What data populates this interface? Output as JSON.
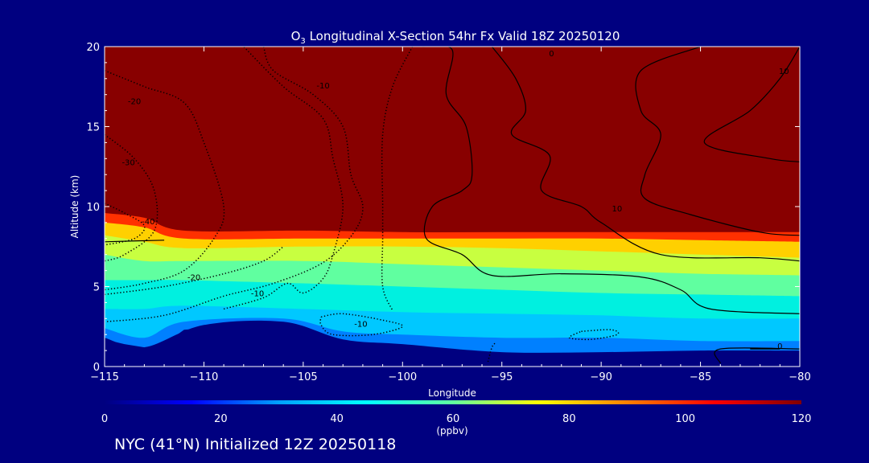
{
  "chart_data": {
    "type": "heatmap",
    "title_prefix": "O",
    "title_subscript": "3",
    "title_suffix": " Longitudinal X-Section 54hr  Fx Valid 18Z 20250120",
    "xlabel": "Longitude",
    "ylabel": "Altitude (km)",
    "xlim": [
      -115,
      -80
    ],
    "ylim": [
      0,
      20
    ],
    "x_ticks": [
      -115,
      -110,
      -105,
      -100,
      -95,
      -90,
      -85,
      -80
    ],
    "x_tick_labels": [
      "−115",
      "−110",
      "−105",
      "−100",
      "−95",
      "−90",
      "−85",
      "−80"
    ],
    "y_ticks": [
      0,
      5,
      10,
      15,
      20
    ],
    "y_tick_labels": [
      "0",
      "5",
      "10",
      "15",
      "20"
    ],
    "colorbar": {
      "label": "(ppbv)",
      "ticks": [
        0,
        20,
        40,
        60,
        80,
        100,
        120
      ],
      "tick_labels": [
        "0",
        "20",
        "40",
        "60",
        "80",
        "100",
        "120"
      ],
      "colors": [
        "#000080",
        "#0000ff",
        "#00a0ff",
        "#00ffff",
        "#60ffa0",
        "#ffff00",
        "#ff8000",
        "#ff0000",
        "#800000"
      ]
    },
    "fill_bands": [
      {
        "value": 120,
        "color": "#880000",
        "bottom": [
          [
            -115,
            9.6
          ],
          [
            -113,
            9.3
          ],
          [
            -111,
            8.5
          ],
          [
            -105,
            8.5
          ],
          [
            -100,
            8.4
          ],
          [
            -95,
            8.4
          ],
          [
            -90,
            8.4
          ],
          [
            -85,
            8.4
          ],
          [
            -80,
            8.4
          ]
        ]
      },
      {
        "value": 100,
        "color": "#ff3000",
        "bottom": [
          [
            -115,
            9.0
          ],
          [
            -113,
            8.7
          ],
          [
            -111,
            8.0
          ],
          [
            -105,
            8.0
          ],
          [
            -100,
            8.0
          ],
          [
            -95,
            8.0
          ],
          [
            -90,
            8.0
          ],
          [
            -85,
            7.9
          ],
          [
            -80,
            7.8
          ]
        ]
      },
      {
        "value": 85,
        "color": "#ffd000",
        "bottom": [
          [
            -115,
            8.2
          ],
          [
            -113,
            7.8
          ],
          [
            -111,
            7.4
          ],
          [
            -105,
            7.5
          ],
          [
            -100,
            7.5
          ],
          [
            -95,
            7.4
          ],
          [
            -90,
            7.2
          ],
          [
            -85,
            7.0
          ],
          [
            -80,
            6.8
          ]
        ]
      },
      {
        "value": 70,
        "color": "#c8ff40",
        "bottom": [
          [
            -115,
            7.0
          ],
          [
            -113,
            6.6
          ],
          [
            -111,
            6.6
          ],
          [
            -105,
            6.6
          ],
          [
            -100,
            6.4
          ],
          [
            -95,
            6.2
          ],
          [
            -90,
            6.0
          ],
          [
            -85,
            5.8
          ],
          [
            -80,
            5.7
          ]
        ]
      },
      {
        "value": 60,
        "color": "#60ffa0",
        "bottom": [
          [
            -115,
            5.4
          ],
          [
            -113,
            5.4
          ],
          [
            -111,
            5.4
          ],
          [
            -105,
            5.2
          ],
          [
            -100,
            5.0
          ],
          [
            -95,
            4.8
          ],
          [
            -90,
            4.6
          ],
          [
            -85,
            4.5
          ],
          [
            -80,
            4.4
          ]
        ]
      },
      {
        "value": 52,
        "color": "#00f0e0",
        "bottom": [
          [
            -115,
            3.6
          ],
          [
            -113,
            3.6
          ],
          [
            -111,
            3.8
          ],
          [
            -105,
            3.6
          ],
          [
            -100,
            3.4
          ],
          [
            -95,
            3.3
          ],
          [
            -90,
            3.2
          ],
          [
            -85,
            3.0
          ],
          [
            -80,
            3.0
          ]
        ]
      },
      {
        "value": 45,
        "color": "#00c8ff",
        "bottom": [
          [
            -115,
            2.4
          ],
          [
            -113,
            1.8
          ],
          [
            -111,
            2.8
          ],
          [
            -106,
            3.0
          ],
          [
            -103,
            2.2
          ],
          [
            -100,
            2.0
          ],
          [
            -95,
            1.8
          ],
          [
            -90,
            1.8
          ],
          [
            -85,
            1.6
          ],
          [
            -80,
            1.6
          ]
        ]
      },
      {
        "value": 35,
        "color": "#0080ff",
        "bottom": [
          [
            -115,
            1.8
          ],
          [
            -113,
            1.2
          ],
          [
            -110,
            2.6
          ],
          [
            -106,
            2.8
          ],
          [
            -103,
            1.7
          ],
          [
            -100,
            1.4
          ],
          [
            -95,
            0.9
          ],
          [
            -90,
            0.9
          ],
          [
            -85,
            1.0
          ],
          [
            -80,
            1.0
          ]
        ]
      }
    ],
    "terrain_km": [
      [
        -115,
        1.7
      ],
      [
        -114,
        1.4
      ],
      [
        -113,
        1.2
      ],
      [
        -112,
        1.4
      ],
      [
        -111,
        2.3
      ],
      [
        -110,
        2.4
      ],
      [
        -109,
        2.2
      ],
      [
        -108,
        2.1
      ],
      [
        -107,
        2.4
      ],
      [
        -106,
        2.5
      ],
      [
        -105,
        1.9
      ],
      [
        -104,
        1.5
      ],
      [
        -102,
        1.2
      ],
      [
        -100,
        1.0
      ],
      [
        -98,
        0.7
      ],
      [
        -96,
        0.4
      ],
      [
        -94,
        0.25
      ],
      [
        -90,
        0.2
      ],
      [
        -86,
        0.2
      ],
      [
        -84,
        0.15
      ],
      [
        -80,
        0.1
      ]
    ],
    "contours": [
      {
        "label": "0",
        "style": "solid",
        "points": [
          [
            -99,
            20
          ],
          [
            -97.5,
            19.8
          ],
          [
            -97.8,
            17
          ],
          [
            -96.8,
            15
          ],
          [
            -96.5,
            12
          ],
          [
            -97,
            11
          ],
          [
            -98.5,
            10
          ],
          [
            -98.8,
            8
          ],
          [
            -97,
            7
          ],
          [
            -95.5,
            5.7
          ],
          [
            -92,
            5.8
          ],
          [
            -88,
            5.6
          ],
          [
            -86,
            4.8
          ],
          [
            -84.5,
            3.6
          ],
          [
            -80,
            3.3
          ]
        ],
        "label_at": [
          -92.5,
          19.6
        ]
      },
      {
        "label": "10",
        "style": "solid",
        "points": [
          [
            -85,
            20
          ],
          [
            -88,
            18.5
          ],
          [
            -88,
            16
          ],
          [
            -87,
            14.5
          ],
          [
            -87.8,
            12
          ],
          [
            -87.8,
            10.5
          ],
          [
            -85.5,
            9.5
          ],
          [
            -82,
            8.4
          ],
          [
            -80,
            8.2
          ]
        ],
        "label_at": [
          -89.2,
          9.9
        ]
      },
      {
        "label": "10",
        "style": "solid",
        "points": [
          [
            -80,
            20
          ],
          [
            -81,
            18
          ],
          [
            -82.5,
            16
          ],
          [
            -84.8,
            14
          ],
          [
            -81.5,
            13
          ],
          [
            -80,
            12.8
          ]
        ],
        "label_at": [
          -80.8,
          18.5
        ]
      },
      {
        "label": "",
        "style": "solid",
        "points": [
          [
            -95.5,
            20
          ],
          [
            -94.3,
            18
          ],
          [
            -93.8,
            16
          ],
          [
            -94.5,
            14.5
          ],
          [
            -92.6,
            13.2
          ],
          [
            -93,
            11
          ],
          [
            -91,
            10
          ],
          [
            -90,
            9
          ],
          [
            -87,
            7
          ],
          [
            -82,
            6.8
          ],
          [
            -80,
            6.6
          ]
        ],
        "label_at": null
      },
      {
        "label": "",
        "style": "solid",
        "points": [
          [
            -115,
            7.8
          ],
          [
            -112,
            7.9
          ]
        ],
        "label_at": null
      },
      {
        "label": "",
        "style": "solid",
        "points": [
          [
            -84,
            0.2
          ],
          [
            -84,
            1.1
          ],
          [
            -80,
            1.1
          ]
        ],
        "label_at": null
      },
      {
        "label": "0",
        "style": "solid",
        "points": [
          [
            -82.5,
            1.1
          ],
          [
            -81,
            1.1
          ]
        ],
        "label_at": [
          -81,
          1.3
        ]
      },
      {
        "label": "-20",
        "style": "dotted",
        "points": [
          [
            -115,
            18.5
          ],
          [
            -113,
            17.5
          ],
          [
            -111,
            16.5
          ],
          [
            -110,
            14
          ],
          [
            -109,
            10
          ],
          [
            -109.5,
            8
          ],
          [
            -111,
            6
          ],
          [
            -113,
            5.2
          ],
          [
            -115,
            4.8
          ]
        ],
        "label_at": [
          -113.5,
          16.6
        ]
      },
      {
        "label": "-30",
        "style": "dotted",
        "points": [
          [
            -115,
            14.5
          ],
          [
            -113.5,
            13
          ],
          [
            -112.5,
            11
          ],
          [
            -112.5,
            8.5
          ],
          [
            -114,
            7
          ],
          [
            -115,
            6.6
          ]
        ],
        "label_at": [
          -113.8,
          12.8
        ]
      },
      {
        "label": "-40",
        "style": "dotted",
        "points": [
          [
            -115,
            10.2
          ],
          [
            -114,
            9.6
          ],
          [
            -113,
            8.8
          ],
          [
            -113.5,
            8.0
          ],
          [
            -115,
            7.6
          ]
        ],
        "label_at": [
          -112.8,
          9.1
        ]
      },
      {
        "label": "-20",
        "style": "dotted",
        "points": [
          [
            -115,
            4.5
          ],
          [
            -112,
            5.0
          ],
          [
            -109,
            5.8
          ],
          [
            -107,
            6.6
          ],
          [
            -106,
            7.5
          ]
        ],
        "label_at": [
          -110.5,
          5.6
        ]
      },
      {
        "label": "-10",
        "style": "dotted",
        "points": [
          [
            -107,
            20
          ],
          [
            -106.5,
            18.5
          ],
          [
            -104.5,
            17
          ],
          [
            -103,
            15
          ],
          [
            -102.6,
            12
          ],
          [
            -102,
            10
          ],
          [
            -102.5,
            8.3
          ],
          [
            -104,
            6.5
          ],
          [
            -106.5,
            5.2
          ],
          [
            -109,
            4.4
          ],
          [
            -112,
            3.2
          ],
          [
            -115,
            2.8
          ]
        ],
        "label_at": [
          -104,
          17.6
        ]
      },
      {
        "label": "-10",
        "style": "dotted",
        "points": [
          [
            -109,
            3.6
          ],
          [
            -107,
            4.3
          ],
          [
            -105.8,
            5.2
          ],
          [
            -105,
            4.6
          ],
          [
            -104,
            5.5
          ],
          [
            -103.5,
            7
          ],
          [
            -103,
            10
          ],
          [
            -103.5,
            13
          ],
          [
            -104,
            15.5
          ],
          [
            -106,
            17.5
          ],
          [
            -108,
            20
          ]
        ],
        "label_at": [
          -107.3,
          4.6
        ]
      },
      {
        "label": "-10",
        "style": "dotted",
        "points": [
          [
            -99.5,
            20
          ],
          [
            -100.5,
            17.5
          ],
          [
            -101,
            14.5
          ],
          [
            -101,
            10
          ],
          [
            -101,
            8
          ],
          [
            -101,
            5
          ],
          [
            -100.5,
            3.5
          ]
        ],
        "label_at": null
      },
      {
        "label": "-10",
        "style": "dotted",
        "points": [
          [
            -104.1,
            3.1
          ],
          [
            -103,
            3.3
          ],
          [
            -101,
            2.9
          ],
          [
            -100,
            2.5
          ],
          [
            -101.5,
            2.0
          ],
          [
            -103.5,
            2.0
          ],
          [
            -104.1,
            2.6
          ],
          [
            -104.1,
            3.1
          ]
        ],
        "label_at": [
          -102.1,
          2.7
        ]
      },
      {
        "label": "",
        "style": "dotted",
        "points": [
          [
            -91,
            2.2
          ],
          [
            -89.5,
            2.3
          ],
          [
            -89.2,
            2.0
          ],
          [
            -90.5,
            1.7
          ],
          [
            -91.6,
            1.8
          ],
          [
            -91,
            2.2
          ]
        ],
        "label_at": null
      },
      {
        "label": "",
        "style": "dotted",
        "points": [
          [
            -95.7,
            0.3
          ],
          [
            -95.5,
            1.2
          ],
          [
            -95.3,
            1.5
          ]
        ],
        "label_at": null
      }
    ]
  },
  "footer_text": "NYC (41°N) Initialized 12Z 20250118"
}
